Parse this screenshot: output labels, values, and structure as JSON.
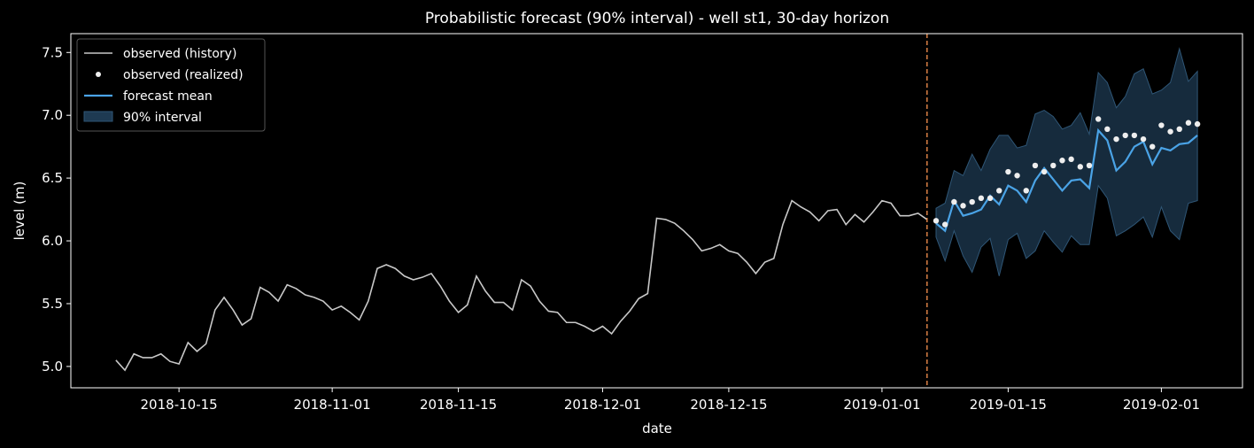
{
  "chart_data": {
    "type": "line",
    "title": "Probabilistic forecast (90% interval) - well st1, 30-day horizon",
    "xlabel": "date",
    "ylabel": "level (m)",
    "xlim": [
      "2018-10-03",
      "2019-02-10"
    ],
    "ylim": [
      4.83,
      7.65
    ],
    "x_ticks": [
      "2018-10-15",
      "2018-11-01",
      "2018-11-15",
      "2018-12-01",
      "2018-12-15",
      "2019-01-01",
      "2019-01-15",
      "2019-02-01"
    ],
    "y_ticks": [
      "5.0",
      "5.5",
      "6.0",
      "6.5",
      "7.0",
      "7.5"
    ],
    "legend_position": "top-left",
    "forecast_start": "2019-01-06",
    "colors": {
      "background": "#000000",
      "history": "#c8c8c8",
      "realized": "#eeeeee",
      "mean": "#4aa3e6",
      "interval": "#1e3a52",
      "cutoff": "#e8894a"
    },
    "series": [
      {
        "name": "observed (history)",
        "kind": "line",
        "start": "2018-10-08",
        "values": [
          5.05,
          4.97,
          5.1,
          5.07,
          5.07,
          5.1,
          5.04,
          5.02,
          5.19,
          5.12,
          5.18,
          5.45,
          5.55,
          5.45,
          5.33,
          5.38,
          5.63,
          5.59,
          5.52,
          5.65,
          5.62,
          5.57,
          5.55,
          5.52,
          5.45,
          5.48,
          5.43,
          5.37,
          5.52,
          5.78,
          5.81,
          5.78,
          5.72,
          5.69,
          5.71,
          5.74,
          5.64,
          5.52,
          5.43,
          5.49,
          5.72,
          5.6,
          5.51,
          5.51,
          5.45,
          5.69,
          5.64,
          5.52,
          5.44,
          5.43,
          5.35,
          5.35,
          5.32,
          5.28,
          5.32,
          5.26,
          5.36,
          5.44,
          5.54,
          5.58,
          6.18,
          6.17,
          6.14,
          6.08,
          6.01,
          5.92,
          5.94,
          5.97,
          5.92,
          5.9,
          5.83,
          5.74,
          5.83,
          5.86,
          6.13,
          6.32,
          6.27,
          6.23,
          6.16,
          6.24,
          6.25,
          6.13,
          6.21,
          6.15,
          6.23,
          6.32,
          6.3,
          6.2,
          6.2,
          6.22,
          6.17
        ]
      },
      {
        "name": "observed (realized)",
        "kind": "points",
        "start": "2019-01-07",
        "values": [
          6.16,
          6.13,
          6.31,
          6.28,
          6.31,
          6.34,
          6.34,
          6.4,
          6.55,
          6.52,
          6.4,
          6.6,
          6.55,
          6.6,
          6.64,
          6.65,
          6.59,
          6.6,
          6.97,
          6.89,
          6.81,
          6.84,
          6.84,
          6.81,
          6.75,
          6.92,
          6.87,
          6.89,
          6.94,
          6.93
        ]
      },
      {
        "name": "forecast mean",
        "kind": "line",
        "start": "2019-01-07",
        "values": [
          6.14,
          6.08,
          6.32,
          6.2,
          6.22,
          6.25,
          6.36,
          6.29,
          6.44,
          6.4,
          6.31,
          6.48,
          6.58,
          6.49,
          6.4,
          6.48,
          6.49,
          6.42,
          6.88,
          6.8,
          6.56,
          6.63,
          6.75,
          6.79,
          6.61,
          6.74,
          6.72,
          6.77,
          6.78,
          6.84
        ]
      },
      {
        "name": "90% interval",
        "kind": "band",
        "start": "2019-01-07",
        "upper": [
          6.26,
          6.3,
          6.56,
          6.52,
          6.69,
          6.56,
          6.73,
          6.84,
          6.84,
          6.74,
          6.76,
          7.01,
          7.04,
          6.99,
          6.89,
          6.92,
          7.02,
          6.85,
          7.34,
          7.26,
          7.06,
          7.15,
          7.33,
          7.37,
          7.17,
          7.2,
          7.26,
          7.53,
          7.27,
          7.35
        ]
      }
    ],
    "interval_lower": {
      "start": "2019-01-07",
      "values": [
        6.03,
        5.84,
        6.08,
        5.88,
        5.75,
        5.95,
        6.02,
        5.72,
        6.01,
        6.06,
        5.86,
        5.92,
        6.08,
        5.99,
        5.91,
        6.04,
        5.97,
        5.97,
        6.44,
        6.34,
        6.04,
        6.08,
        6.13,
        6.19,
        6.03,
        6.27,
        6.08,
        6.01,
        6.3,
        6.32
      ]
    }
  }
}
